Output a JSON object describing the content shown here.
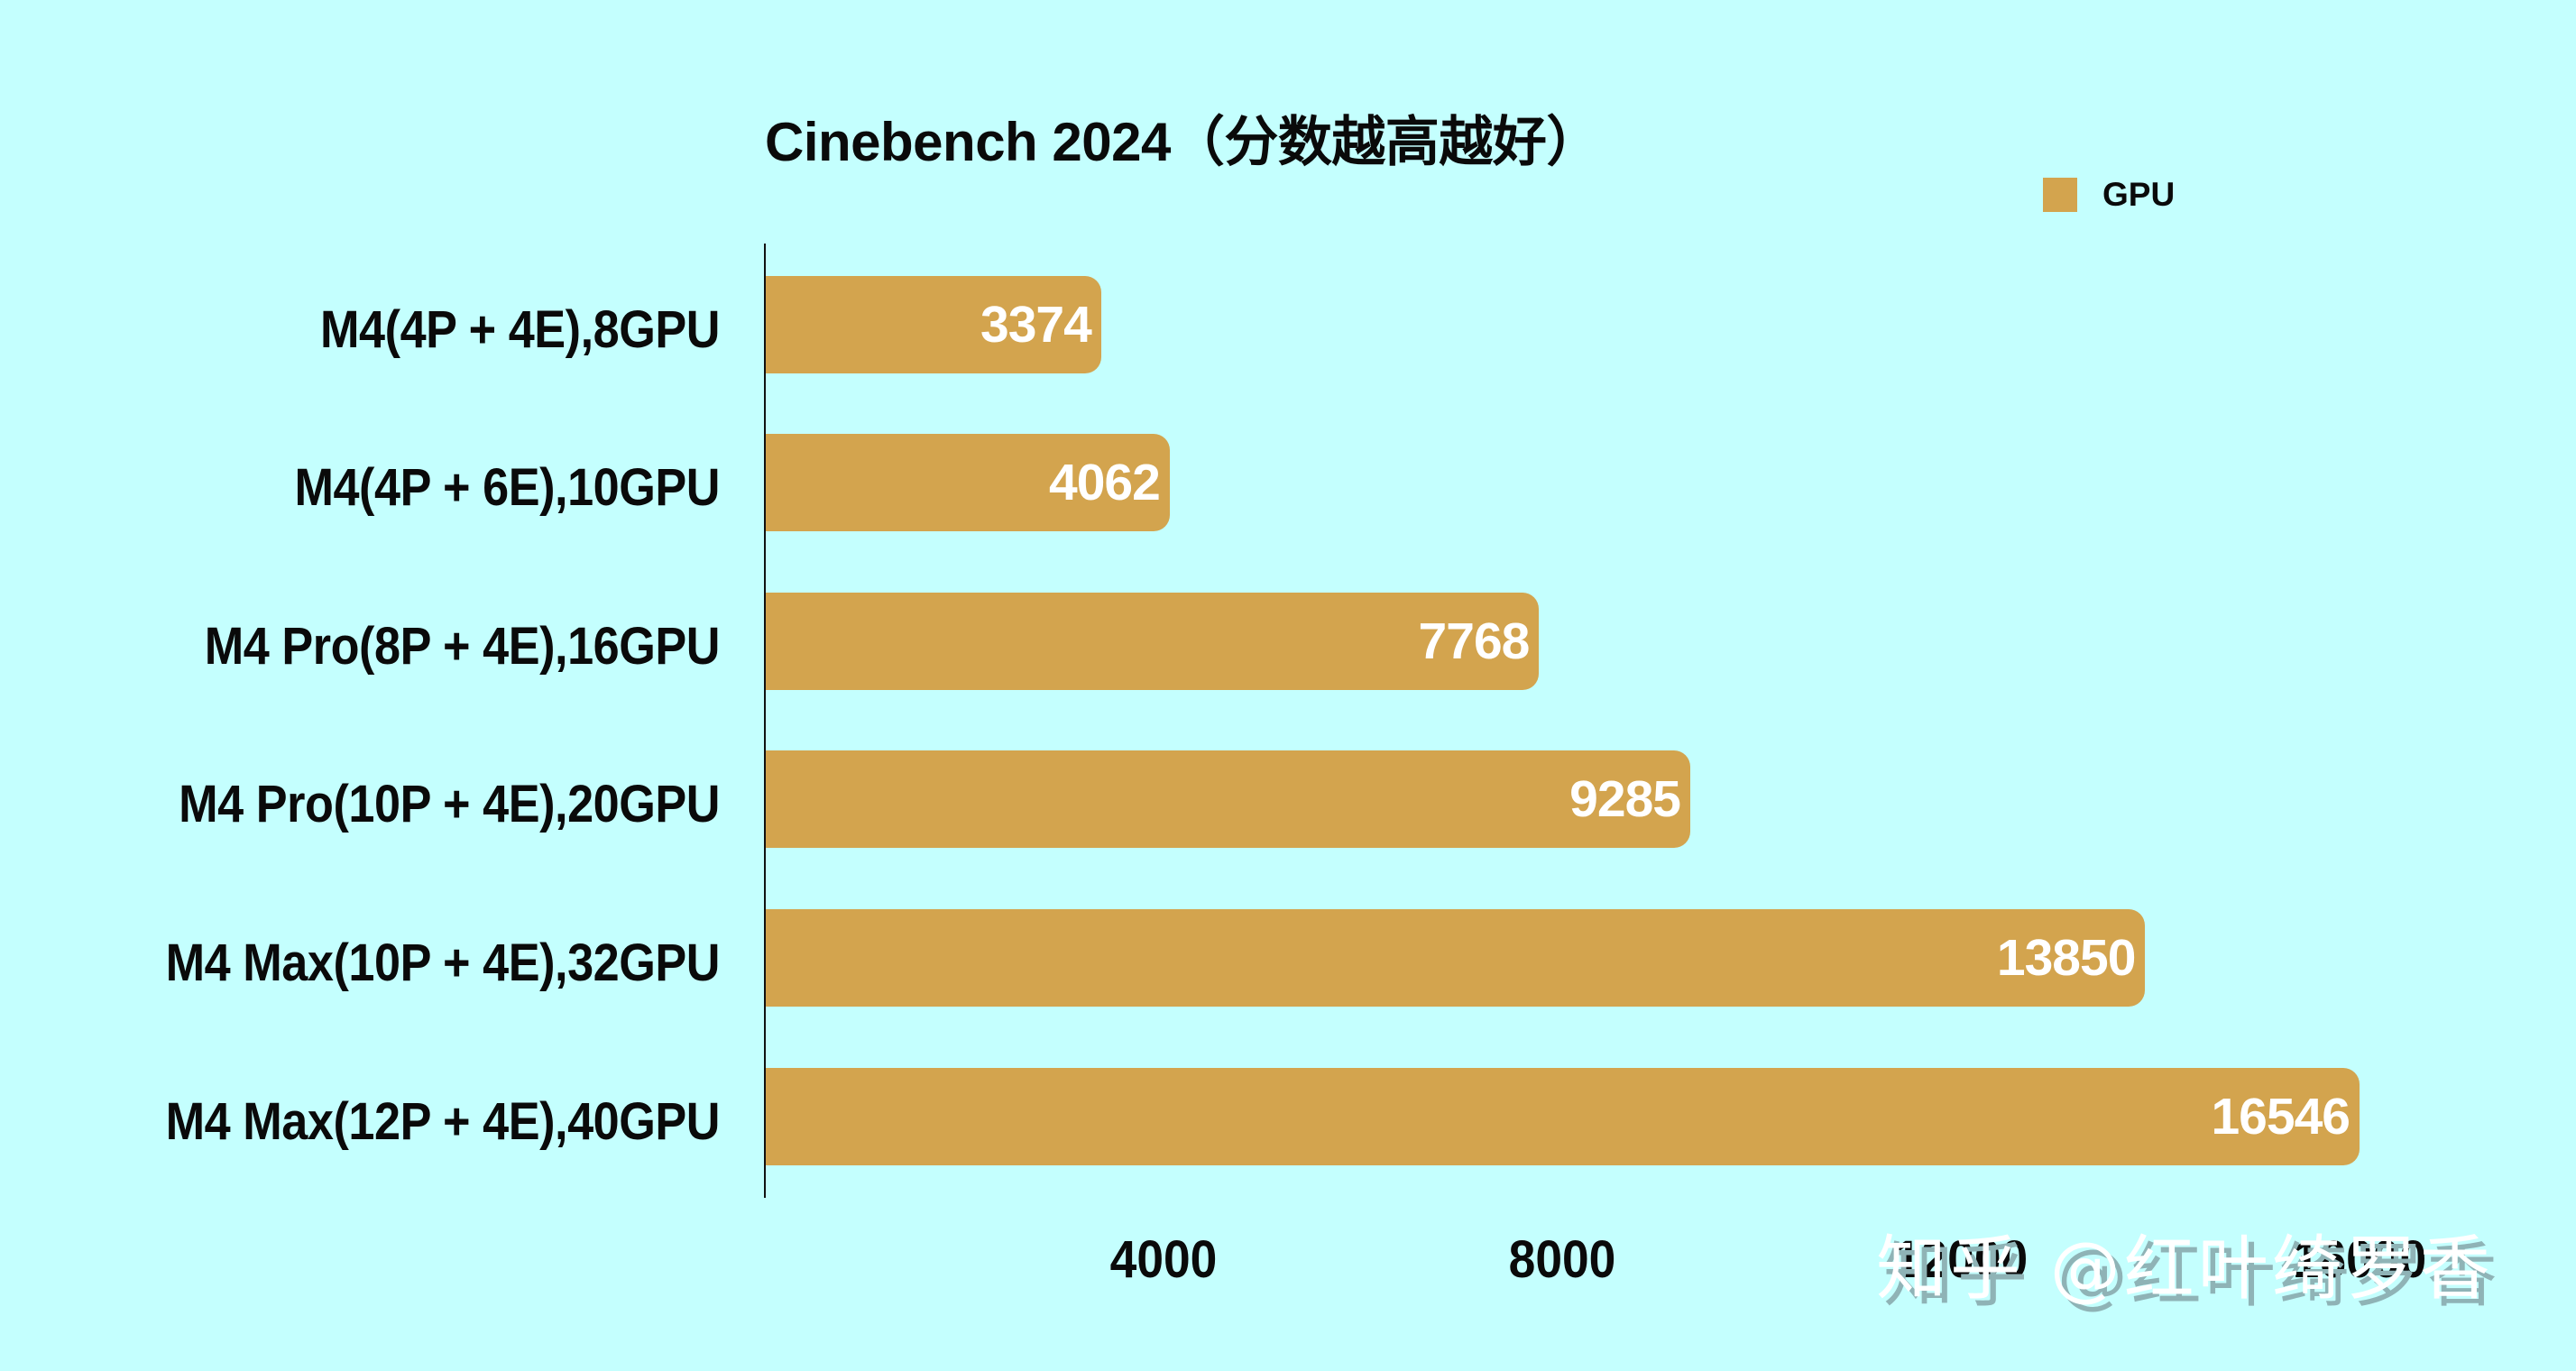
{
  "chart": {
    "title": "Cinebench 2024（分数越高越好）",
    "legend": {
      "label": "GPU",
      "color": "#D3A44E"
    },
    "bars": [
      {
        "label": "M4(4P + 4E),8GPU",
        "value": "3374"
      },
      {
        "label": "M4(4P + 6E),10GPU",
        "value": "4062"
      },
      {
        "label": "M4 Pro(8P + 4E),16GPU",
        "value": "7768"
      },
      {
        "label": "M4 Pro(10P + 4E),20GPU",
        "value": "9285"
      },
      {
        "label": "M4 Max(10P + 4E),32GPU",
        "value": "13850"
      },
      {
        "label": "M4 Max(12P + 4E),40GPU",
        "value": "16546"
      }
    ],
    "x_ticks": [
      "4000",
      "8000",
      "12000",
      "16000"
    ],
    "background": "#C4FFFE"
  },
  "watermark": {
    "text": "知乎 @红叶绮罗香"
  },
  "chart_data": {
    "type": "bar",
    "orientation": "horizontal",
    "title": "Cinebench 2024（分数越高越好）",
    "xlabel": "",
    "ylabel": "",
    "categories": [
      "M4(4P + 4E),8GPU",
      "M4(4P + 6E),10GPU",
      "M4 Pro(8P + 4E),16GPU",
      "M4 Pro(10P + 4E),20GPU",
      "M4 Max(10P + 4E),32GPU",
      "M4 Max(12P + 4E),40GPU"
    ],
    "series": [
      {
        "name": "GPU",
        "color": "#D3A44E",
        "values": [
          3374,
          4062,
          7768,
          9285,
          13850,
          16546
        ]
      }
    ],
    "xticks": [
      4000,
      8000,
      12000,
      16000
    ],
    "xlim": [
      0,
      16546
    ],
    "grid": false,
    "legend_position": "top-right",
    "data_labels": true
  }
}
